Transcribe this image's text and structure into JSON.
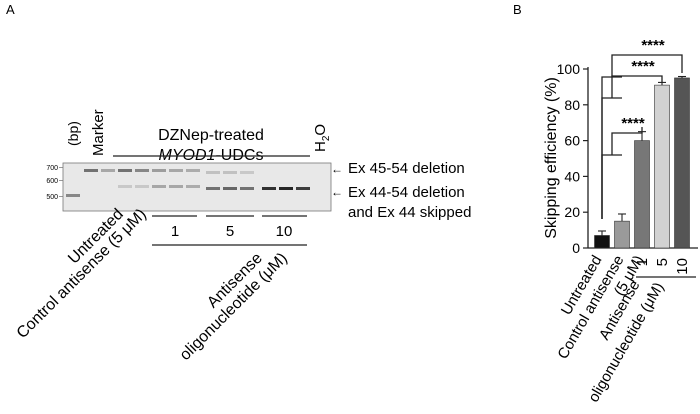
{
  "panel_a": {
    "label": "A",
    "bp_label": "(bp)",
    "marker_label": "Marker",
    "treatment_line1": "DZNep-treated",
    "treatment_line2_italic": "MYOD1",
    "treatment_line2_rest": "-UDCs",
    "h2o_h": "H",
    "h2o_sub": "2",
    "h2o_o": "O",
    "ladder_ticks": [
      "700",
      "600",
      "500"
    ],
    "band_label_1": "Ex 45-54 deletion",
    "band_label_2a": "Ex 44-54 deletion",
    "band_label_2b": "and Ex 44 skipped",
    "dose_labels": [
      "1",
      "5",
      "10"
    ],
    "lane_label_untreated": "Untreated",
    "lane_label_control": "Control antisense (5 μM)",
    "group_label_line1": "Antisense",
    "group_label_line2": "oligonucleotide (μM)"
  },
  "panel_b": {
    "label": "B",
    "significance": [
      "****",
      "****",
      "****"
    ],
    "x_labels": [
      "Untreated",
      "Control antisense",
      "(5 μM)"
    ],
    "dose_labels": [
      "1",
      "5",
      "10"
    ],
    "group_label_line1": "Antisense",
    "group_label_line2": "oligonucleotide (μM)"
  },
  "chart_data": {
    "type": "bar",
    "categories": [
      "Untreated",
      "Control antisense (5 μM)",
      "1",
      "5",
      "10"
    ],
    "values": [
      7,
      15,
      60,
      91,
      95
    ],
    "errors": [
      2.5,
      4,
      5,
      1.5,
      0.8
    ],
    "ylabel": "Skipping efficiency (%)",
    "ylim": [
      0,
      100
    ],
    "yticks": [
      "0",
      "20",
      "40",
      "60",
      "80",
      "100"
    ],
    "colors": [
      "#111111",
      "#9a9a9a",
      "#777777",
      "#d2d2d2",
      "#555555"
    ]
  }
}
